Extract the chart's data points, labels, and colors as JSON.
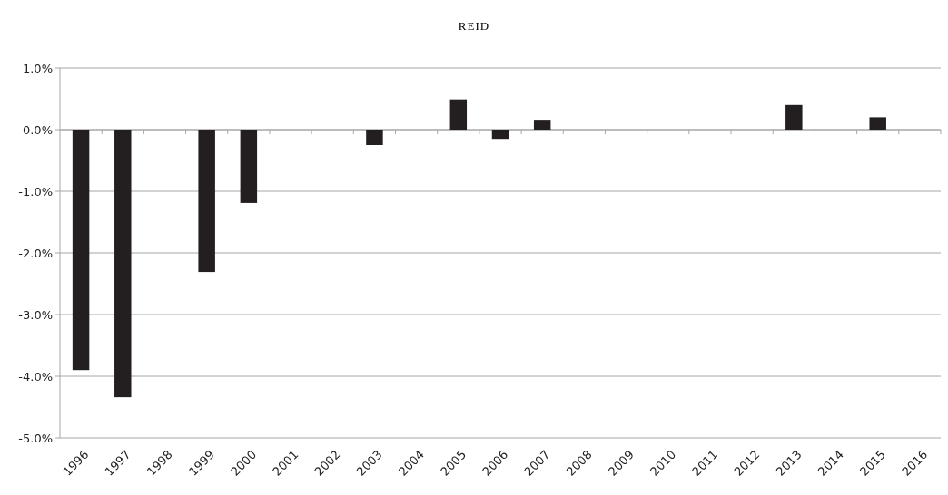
{
  "chart_data": {
    "type": "bar",
    "title": "REID",
    "categories": [
      "1996",
      "1997",
      "1998",
      "1999",
      "2000",
      "2001",
      "2002",
      "2003",
      "2004",
      "2005",
      "2006",
      "2007",
      "2008",
      "2009",
      "2010",
      "2011",
      "2012",
      "2013",
      "2014",
      "2015",
      "2016"
    ],
    "values": [
      -3.9,
      -4.34,
      0,
      -2.31,
      -1.19,
      0,
      0,
      -0.25,
      0,
      0.49,
      -0.15,
      0.16,
      0,
      0,
      0,
      0,
      0,
      0.4,
      0,
      0.2,
      0
    ],
    "color": "#231f20",
    "ylim": [
      -5,
      1
    ],
    "yticks": [
      {
        "value": -5,
        "label": "-5.0%"
      },
      {
        "value": -4,
        "label": "-4.0%"
      },
      {
        "value": -3,
        "label": "-3.0%"
      },
      {
        "value": -2,
        "label": "-2.0%"
      },
      {
        "value": -1,
        "label": "-1.0%"
      },
      {
        "value": 0,
        "label": "0.0%"
      },
      {
        "value": 1,
        "label": "1.0%"
      }
    ],
    "grid": "y"
  }
}
